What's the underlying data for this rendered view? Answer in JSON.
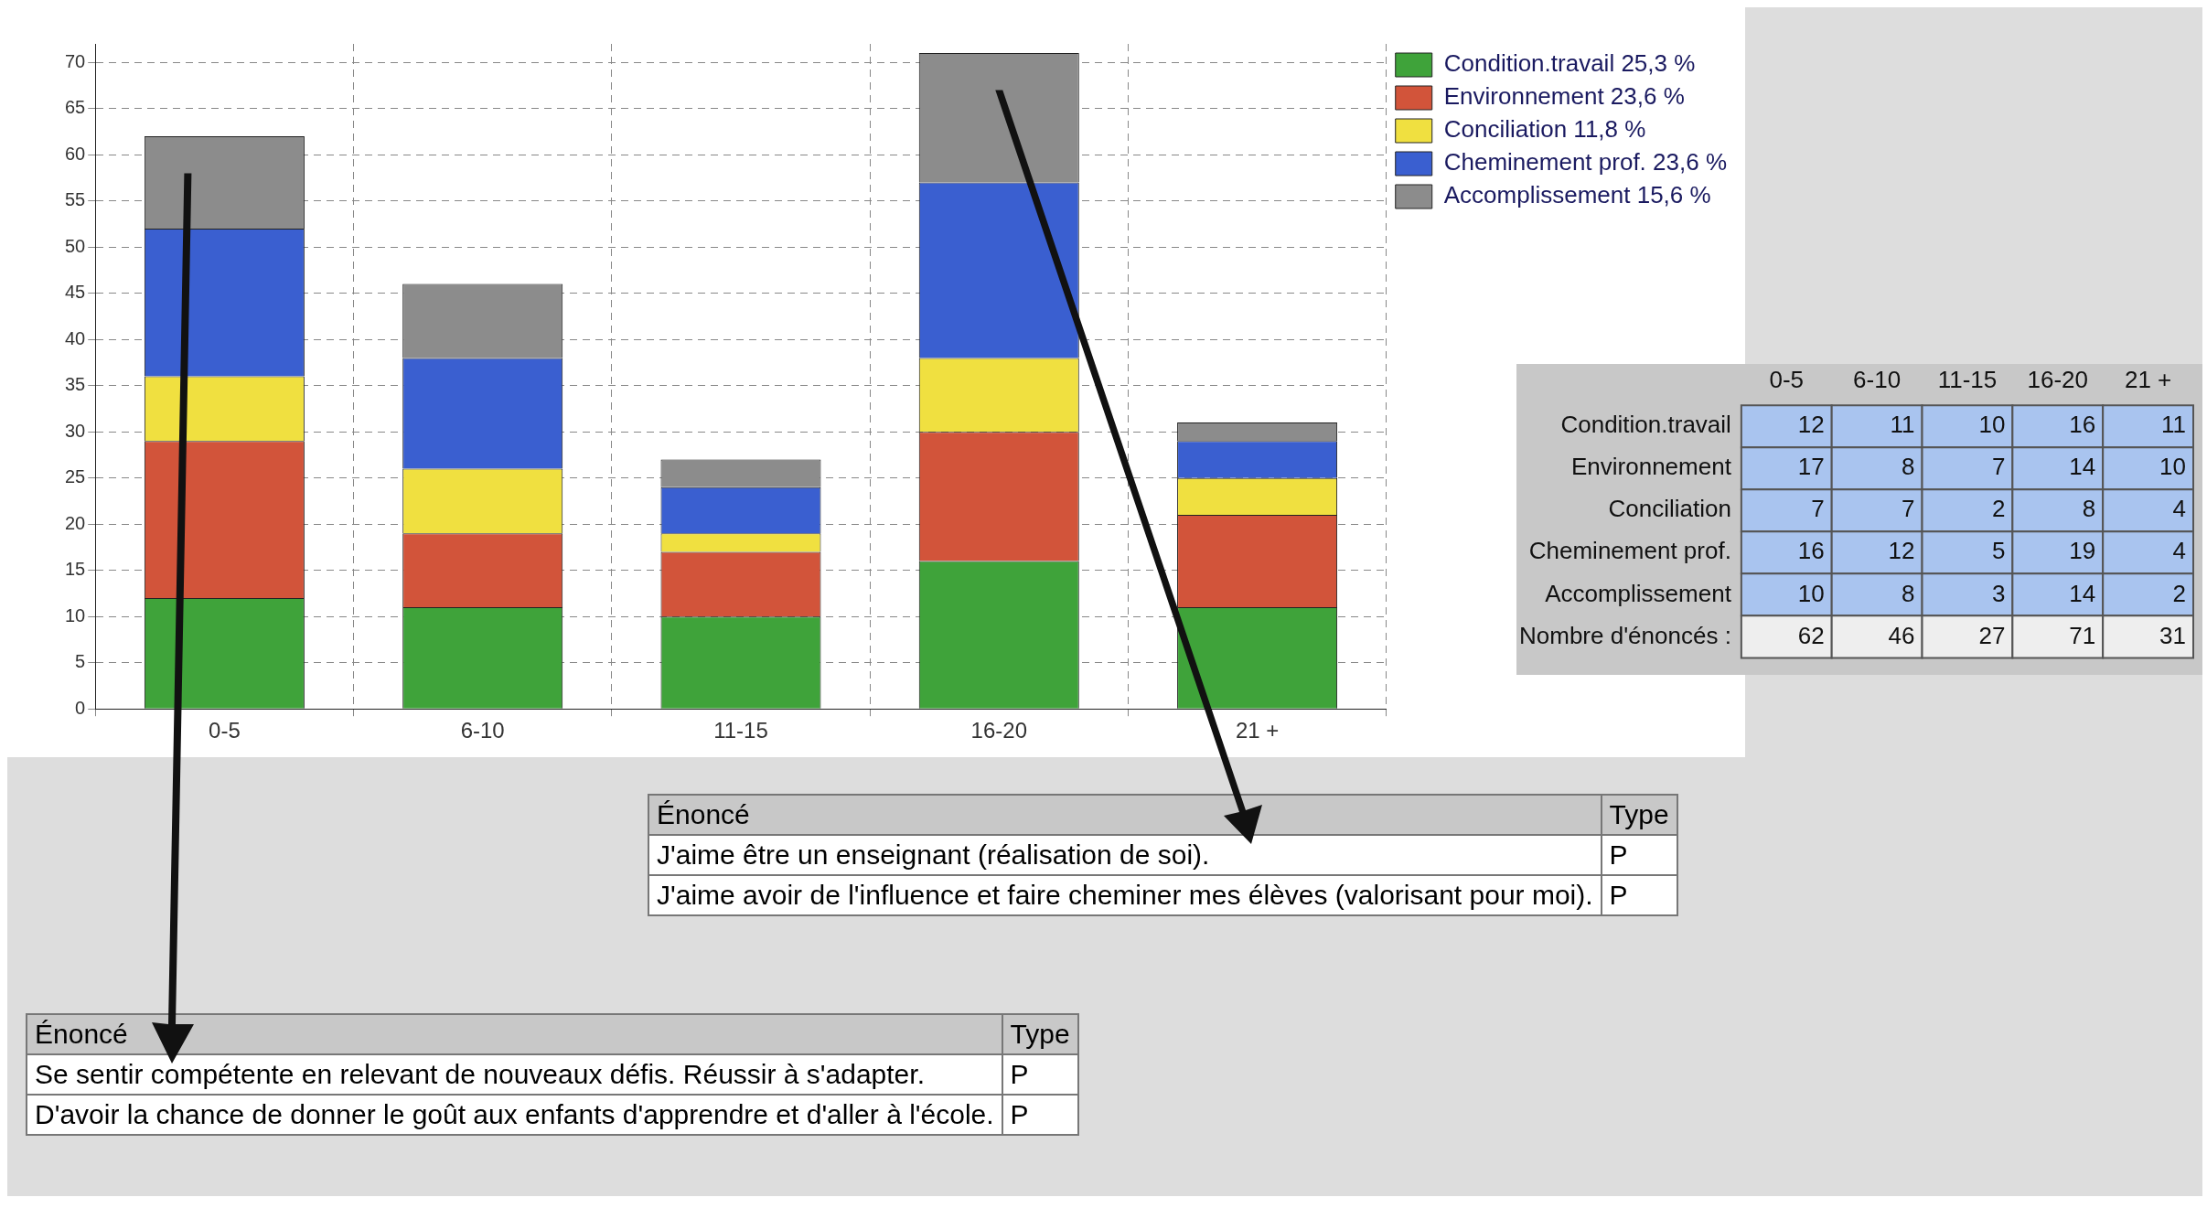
{
  "chart_data": [
    {
      "type": "bar",
      "stacked": true,
      "categories": [
        "0-5",
        "6-10",
        "11-15",
        "16-20",
        "21 +"
      ],
      "series": [
        {
          "name": "Condition.travail 25,3 %",
          "color": "#3fa33a",
          "values": [
            12,
            11,
            10,
            16,
            11
          ]
        },
        {
          "name": "Environnement 23,6 %",
          "color": "#d2543a",
          "values": [
            17,
            8,
            7,
            14,
            10
          ]
        },
        {
          "name": "Conciliation 11,8 %",
          "color": "#f0e040",
          "values": [
            7,
            7,
            2,
            8,
            4
          ]
        },
        {
          "name": "Cheminement prof. 23,6 %",
          "color": "#3a5fd0",
          "values": [
            16,
            12,
            5,
            19,
            4
          ]
        },
        {
          "name": "Accomplissement 15,6 %",
          "color": "#8c8c8c",
          "values": [
            10,
            8,
            3,
            14,
            2
          ]
        }
      ],
      "ylim": [
        0,
        72
      ],
      "yticks": [
        0,
        5,
        10,
        15,
        20,
        25,
        30,
        35,
        40,
        45,
        50,
        55,
        60,
        65,
        70
      ],
      "grid": true,
      "legend": "top right",
      "annotations": [
        "Énoncé",
        "Type",
        "J'aime être un enseignant (réalisation de soi).",
        "P",
        "J'aime avoir de l'influence et faire cheminer mes élèves (valorisant pour moi).",
        "P",
        "Énoncé",
        "Type",
        "Se sentir compétente en relevant de nouveaux défis.  Réussir à s'adapter.",
        "P",
        "D'avoir la chance de donner le goût aux enfants d'apprendre et d'aller à l'école.",
        "P"
      ]
    },
    {
      "type": "heatmap",
      "categories": [
        "0-5",
        "6-10",
        "11-15",
        "16-20",
        "21 +"
      ],
      "y_categories": [
        "Condition.travail",
        "Environnement",
        "Conciliation",
        "Cheminement prof.",
        "Accomplissement",
        "Nombre d'énoncés :"
      ],
      "data_labels": true,
      "cells": [
        [
          12,
          11,
          10,
          16,
          11
        ],
        [
          17,
          8,
          7,
          14,
          10
        ],
        [
          7,
          7,
          2,
          8,
          4
        ],
        [
          16,
          12,
          5,
          19,
          4
        ],
        [
          10,
          8,
          3,
          14,
          2
        ],
        [
          62,
          46,
          27,
          71,
          31
        ]
      ]
    }
  ]
}
